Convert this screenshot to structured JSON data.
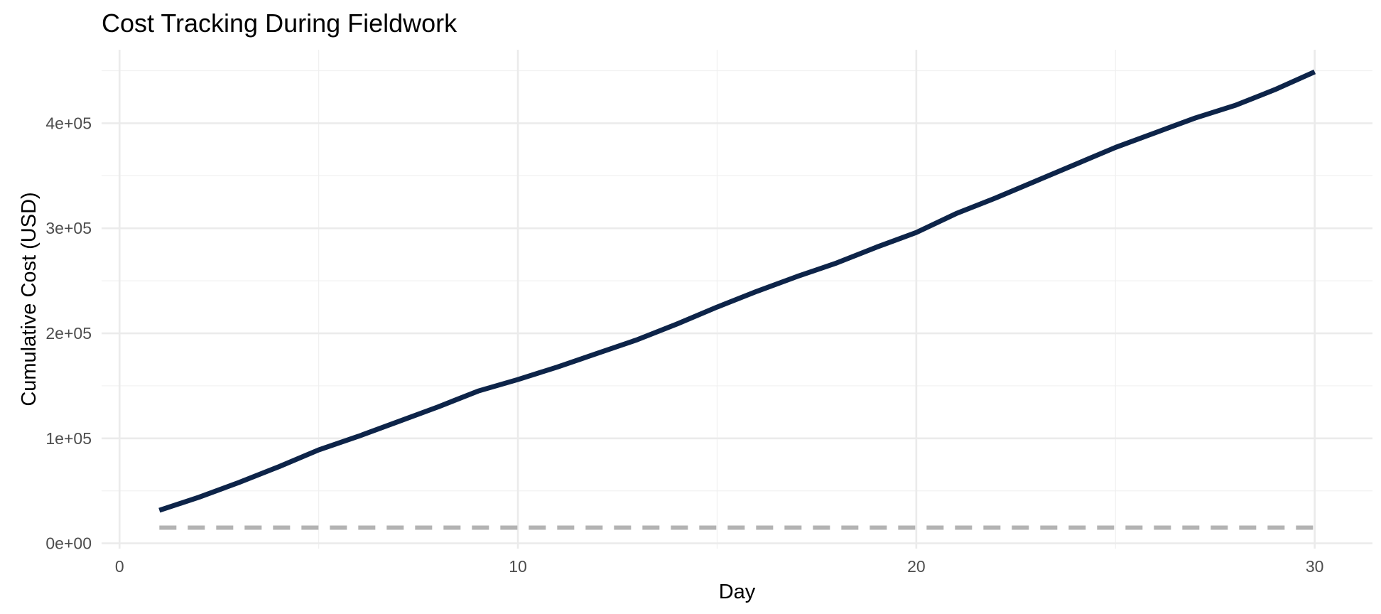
{
  "chart_data": {
    "type": "line",
    "title": "Cost Tracking During Fieldwork",
    "xlabel": "Day",
    "ylabel": "Cumulative Cost (USD)",
    "xlim": [
      -0.45,
      31.45
    ],
    "ylim": [
      -5000,
      470000
    ],
    "x_ticks": [
      0,
      10,
      20,
      30
    ],
    "x_tick_labels": [
      "0",
      "10",
      "20",
      "30"
    ],
    "y_ticks": [
      0,
      100000,
      200000,
      300000,
      400000
    ],
    "y_tick_labels": [
      "0e+00",
      "1e+05",
      "2e+05",
      "3e+05",
      "4e+05"
    ],
    "grid": true,
    "legend": "none",
    "series": [
      {
        "color": "#0d2449",
        "style": "solid",
        "x": [
          1,
          2,
          3,
          4,
          5,
          6,
          7,
          8,
          9,
          10,
          11,
          12,
          13,
          14,
          15,
          16,
          17,
          18,
          19,
          20,
          21,
          22,
          23,
          24,
          25,
          26,
          27,
          28,
          29,
          30
        ],
        "values": [
          31500,
          44000,
          58000,
          73000,
          89000,
          102000,
          116000,
          130000,
          145000,
          156000,
          168000,
          181000,
          194000,
          209000,
          225000,
          240000,
          254000,
          267000,
          282000,
          296000,
          314000,
          329000,
          345000,
          361000,
          377000,
          391000,
          405000,
          417000,
          432000,
          449000
        ]
      },
      {
        "color": "#b3b3b3",
        "style": "dashed",
        "x": [
          1,
          30
        ],
        "values": [
          15000,
          15000
        ]
      }
    ]
  }
}
